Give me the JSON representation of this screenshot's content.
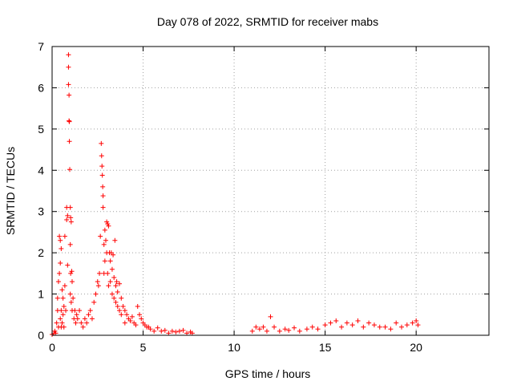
{
  "chart_data": {
    "type": "scatter",
    "title": "Day 078 of 2022, SRMTID for receiver mabs",
    "xlabel": "GPS time / hours",
    "ylabel": "SRMTID / TECUs",
    "xlim": [
      0,
      24
    ],
    "ylim": [
      0,
      7
    ],
    "x_ticks": [
      0,
      5,
      10,
      15,
      20
    ],
    "y_ticks": [
      0,
      1,
      2,
      3,
      4,
      5,
      6,
      7
    ],
    "grid": true,
    "marker": "+",
    "series": [
      {
        "name": "SRMTID",
        "color": "#ff0000",
        "x": [
          0.0,
          0.1,
          0.15,
          0.2,
          0.25,
          0.3,
          0.3,
          0.35,
          0.35,
          0.4,
          0.4,
          0.45,
          0.45,
          0.45,
          0.5,
          0.5,
          0.5,
          0.55,
          0.55,
          0.6,
          0.6,
          0.65,
          0.65,
          0.7,
          0.7,
          0.75,
          0.8,
          0.8,
          0.85,
          0.85,
          0.9,
          0.9,
          0.9,
          0.93,
          0.93,
          0.95,
          0.95,
          0.97,
          1.0,
          1.0,
          1.0,
          1.02,
          1.02,
          1.05,
          1.05,
          1.08,
          1.1,
          1.1,
          1.15,
          1.2,
          1.25,
          1.3,
          1.35,
          1.4,
          1.5,
          1.6,
          1.7,
          1.8,
          1.9,
          2.0,
          2.1,
          2.2,
          2.3,
          2.4,
          2.5,
          2.55,
          2.6,
          2.65,
          2.7,
          2.72,
          2.74,
          2.76,
          2.78,
          2.8,
          2.8,
          2.85,
          2.85,
          2.9,
          2.9,
          2.95,
          3.0,
          3.0,
          3.05,
          3.05,
          3.1,
          3.1,
          3.15,
          3.2,
          3.2,
          3.25,
          3.3,
          3.3,
          3.35,
          3.4,
          3.4,
          3.45,
          3.5,
          3.5,
          3.55,
          3.6,
          3.6,
          3.7,
          3.7,
          3.8,
          3.8,
          3.9,
          4.0,
          4.0,
          4.1,
          4.2,
          4.3,
          4.4,
          4.5,
          4.6,
          4.7,
          4.8,
          4.9,
          5.0,
          5.1,
          5.2,
          5.3,
          5.4,
          5.6,
          5.8,
          6.0,
          6.2,
          6.4,
          6.6,
          6.8,
          7.0,
          7.2,
          7.4,
          7.6,
          7.7,
          11.0,
          11.2,
          11.4,
          11.6,
          11.8,
          12.0,
          12.2,
          12.5,
          12.8,
          13.0,
          13.3,
          13.6,
          14.0,
          14.3,
          14.6,
          15.0,
          15.3,
          15.6,
          15.9,
          16.2,
          16.5,
          16.8,
          17.1,
          17.4,
          17.7,
          18.0,
          18.3,
          18.6,
          18.9,
          19.2,
          19.5,
          19.8,
          20.0,
          20.1
        ],
        "y": [
          0.02,
          0.05,
          0.1,
          0.05,
          0.3,
          0.6,
          0.9,
          0.2,
          1.3,
          1.5,
          2.4,
          2.3,
          1.75,
          0.4,
          2.1,
          0.6,
          0.2,
          1.1,
          0.3,
          0.9,
          0.5,
          0.7,
          0.2,
          2.4,
          1.2,
          0.6,
          3.1,
          2.8,
          2.9,
          1.7,
          6.8,
          6.5,
          6.08,
          5.82,
          5.2,
          5.18,
          4.7,
          4.02,
          3.1,
          2.2,
          1.0,
          2.85,
          1.5,
          2.75,
          0.8,
          1.55,
          1.3,
          0.6,
          0.9,
          0.4,
          0.6,
          0.3,
          0.5,
          0.4,
          0.6,
          0.3,
          0.2,
          0.4,
          0.3,
          0.5,
          0.6,
          0.4,
          0.8,
          1.0,
          1.3,
          1.2,
          1.5,
          2.4,
          4.65,
          4.35,
          4.1,
          3.88,
          3.6,
          3.38,
          3.1,
          2.2,
          1.5,
          2.55,
          1.8,
          2.3,
          2.75,
          2.0,
          2.7,
          1.5,
          2.65,
          1.2,
          2.0,
          1.8,
          1.3,
          2.0,
          1.6,
          1.0,
          1.95,
          1.4,
          0.9,
          2.3,
          1.2,
          0.8,
          1.3,
          1.05,
          0.7,
          1.25,
          0.6,
          0.9,
          0.5,
          0.7,
          0.6,
          0.3,
          0.5,
          0.4,
          0.35,
          0.45,
          0.3,
          0.25,
          0.7,
          0.5,
          0.4,
          0.3,
          0.25,
          0.2,
          0.2,
          0.15,
          0.1,
          0.18,
          0.1,
          0.12,
          0.05,
          0.1,
          0.08,
          0.1,
          0.12,
          0.05,
          0.08,
          0.05,
          0.1,
          0.2,
          0.15,
          0.2,
          0.1,
          0.45,
          0.2,
          0.1,
          0.15,
          0.12,
          0.18,
          0.1,
          0.15,
          0.2,
          0.15,
          0.25,
          0.3,
          0.35,
          0.2,
          0.3,
          0.25,
          0.35,
          0.2,
          0.3,
          0.25,
          0.2,
          0.2,
          0.15,
          0.3,
          0.2,
          0.25,
          0.3,
          0.35,
          0.25
        ]
      }
    ]
  }
}
